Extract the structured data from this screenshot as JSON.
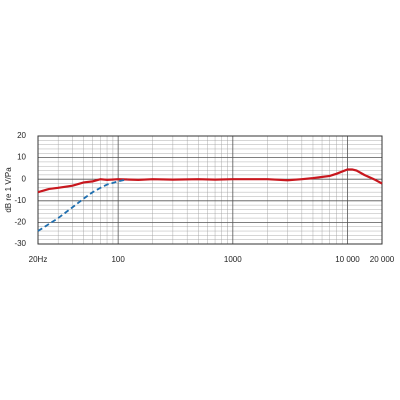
{
  "chart_data": {
    "type": "line",
    "ylabel": "dB re 1 V/Pa",
    "xscale": "log",
    "xlim": [
      20,
      20000
    ],
    "ylim": [
      -30,
      20
    ],
    "xticks": [
      {
        "value": 20,
        "label": "20Hz"
      },
      100,
      1000,
      {
        "value": 10000,
        "label": "10 000"
      },
      {
        "value": 20000,
        "label": "20 000"
      }
    ],
    "xminorticks": [
      30,
      40,
      50,
      60,
      70,
      80,
      90,
      200,
      300,
      400,
      500,
      600,
      700,
      800,
      900,
      2000,
      3000,
      4000,
      5000,
      6000,
      7000,
      8000,
      9000
    ],
    "yticks": [
      20,
      10,
      0,
      -10,
      -20,
      -30
    ],
    "yminorticks": [
      18,
      16,
      14,
      12,
      8,
      6,
      4,
      2,
      -2,
      -4,
      -6,
      -8,
      -12,
      -14,
      -16,
      -18,
      -22,
      -24,
      -26,
      -28
    ],
    "grid": true,
    "series": [
      {
        "color": "#c8171e",
        "style": "solid",
        "x": [
          20,
          25,
          30,
          40,
          50,
          60,
          70,
          80,
          100,
          150,
          200,
          300,
          500,
          700,
          1000,
          2000,
          3000,
          4000,
          5000,
          7000,
          8000,
          10000,
          11000,
          12000,
          14000,
          17000,
          20000
        ],
        "values": [
          -6,
          -4.5,
          -4,
          -3,
          -1.5,
          -1,
          0,
          -0.3,
          0,
          -0.3,
          0,
          -0.2,
          0,
          -0.2,
          0,
          0,
          -0.5,
          0,
          0.5,
          1.5,
          2.5,
          4.5,
          4.5,
          4,
          2,
          0,
          -2
        ]
      },
      {
        "color": "#1f6fb0",
        "style": "dashed",
        "x": [
          20,
          30,
          40,
          50,
          60,
          70,
          80,
          100,
          120
        ],
        "values": [
          -24,
          -18,
          -13,
          -9,
          -6,
          -4,
          -2.5,
          -1,
          0
        ]
      }
    ]
  }
}
